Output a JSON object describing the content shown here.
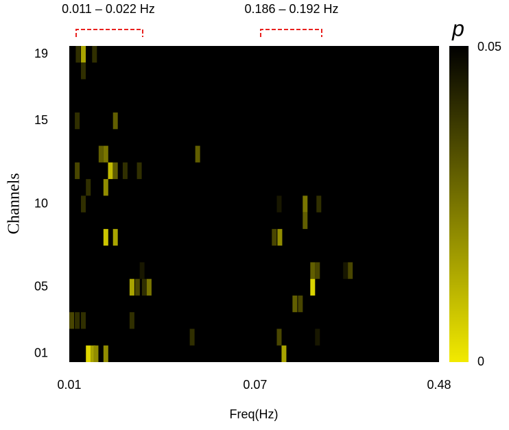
{
  "chart_data": {
    "type": "heatmap",
    "x_label": "Freq(Hz)",
    "y_label": "Channels",
    "x_scale": "log",
    "xlim": [
      0.01,
      0.48
    ],
    "xticks": [
      0.01,
      0.07,
      0.48
    ],
    "ylim": [
      0.5,
      19.5
    ],
    "yticks": [
      19,
      15,
      10,
      {
        "value": 5,
        "label": "05"
      },
      {
        "value": 1,
        "label": "01"
      }
    ],
    "background": "#000000",
    "colorbar": {
      "label": "p",
      "clim": [
        0,
        0.05
      ],
      "ticks": [
        0.05,
        0
      ],
      "colors": [
        "#f2ea00",
        "#000000"
      ]
    },
    "annotations": [
      {
        "text": "0.011 – 0.022 Hz"
      },
      {
        "text": "0.186 – 0.192 Hz"
      }
    ],
    "x": [
      0.0107,
      0.0113,
      0.0127,
      0.0113,
      0.0106,
      0.0158,
      0.0136,
      0.0143,
      0.0374,
      0.0106,
      0.015,
      0.0158,
      0.0175,
      0.0203,
      0.0119,
      0.0143,
      0.0113,
      0.0878,
      0.1152,
      0.133,
      0.1152,
      0.0143,
      0.0158,
      0.0834,
      0.0884,
      0.0209,
      0.1247,
      0.1311,
      0.1759,
      0.1849,
      0.0188,
      0.0199,
      0.0214,
      0.0225,
      0.1247,
      0.1035,
      0.1096,
      0.01,
      0.0106,
      0.0113,
      0.0188,
      0.0353,
      0.0878,
      0.1311,
      0.0119,
      0.0125,
      0.0129,
      0.0143,
      0.0923
    ],
    "y": [
      19,
      19,
      19,
      18,
      15,
      15,
      13,
      13,
      13,
      12,
      12,
      12,
      12,
      12,
      11,
      11,
      10,
      10,
      10,
      10,
      9,
      8,
      8,
      8,
      8,
      6,
      6,
      6,
      6,
      6,
      5,
      5,
      5,
      5,
      5,
      4,
      4,
      3,
      3,
      3,
      3,
      2,
      2,
      2,
      1,
      1,
      1,
      1,
      1
    ],
    "values": [
      0.04,
      0.015,
      0.04,
      0.04,
      0.04,
      0.03,
      0.03,
      0.025,
      0.03,
      0.035,
      0.01,
      0.03,
      0.04,
      0.04,
      0.04,
      0.02,
      0.04,
      0.045,
      0.025,
      0.04,
      0.03,
      0.008,
      0.015,
      0.035,
      0.02,
      0.045,
      0.03,
      0.035,
      0.045,
      0.035,
      0.015,
      0.035,
      0.04,
      0.025,
      0.005,
      0.03,
      0.035,
      0.035,
      0.04,
      0.04,
      0.04,
      0.04,
      0.035,
      0.045,
      0.004,
      0.015,
      0.02,
      0.02,
      0.015
    ]
  }
}
